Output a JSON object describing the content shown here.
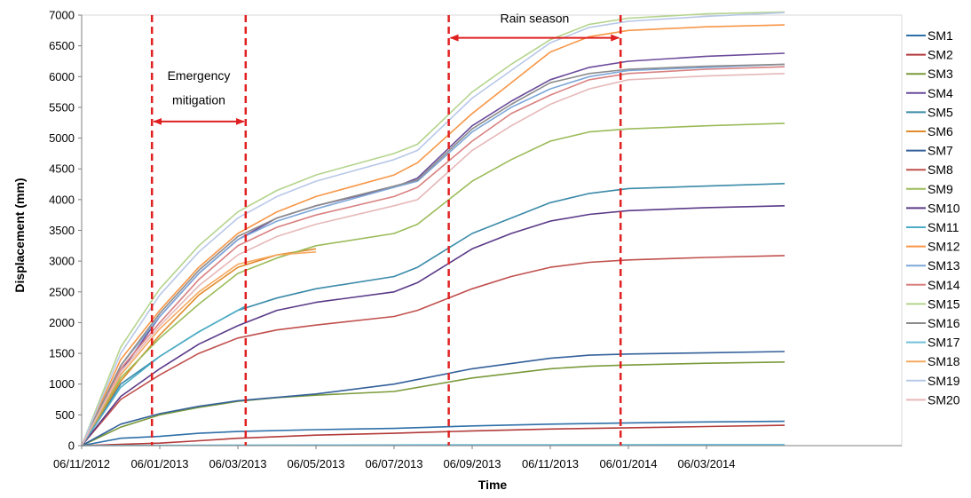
{
  "chart_data": {
    "type": "line",
    "title": "",
    "xlabel": "Time",
    "ylabel": "Displacement  (mm)",
    "x_ticks": [
      "06/11/2012",
      "06/01/2013",
      "06/03/2013",
      "06/05/2013",
      "06/07/2013",
      "06/09/2013",
      "06/11/2013",
      "06/01/2014",
      "06/03/2014"
    ],
    "ylim": [
      0,
      7000
    ],
    "y_ticks": [
      0,
      500,
      1000,
      1500,
      2000,
      2500,
      3000,
      3500,
      4000,
      4500,
      5000,
      5500,
      6000,
      6500,
      7000
    ],
    "grid": false,
    "legend_position": "right",
    "x_unit_note": "x values are in months counted from 06/11/2012 (tick index)",
    "series": [
      {
        "name": "SM1",
        "color": "#2e6fa8",
        "x": [
          0,
          0.5,
          1,
          1.5,
          2,
          3,
          4,
          5,
          6,
          7,
          8,
          9
        ],
        "y": [
          0,
          120,
          150,
          200,
          230,
          260,
          280,
          320,
          350,
          370,
          385,
          395
        ]
      },
      {
        "name": "SM2",
        "color": "#b33a3a",
        "x": [
          0,
          0.5,
          1,
          1.5,
          2,
          3,
          4,
          5,
          6,
          7,
          8,
          9
        ],
        "y": [
          0,
          20,
          40,
          80,
          120,
          170,
          200,
          240,
          270,
          290,
          310,
          330
        ]
      },
      {
        "name": "SM3",
        "color": "#7a9a3a",
        "x": [
          0,
          0.5,
          1,
          1.5,
          2,
          2.5,
          3,
          4,
          5,
          6,
          6.5,
          7,
          8,
          9
        ],
        "y": [
          0,
          300,
          500,
          620,
          720,
          780,
          820,
          880,
          1100,
          1250,
          1290,
          1310,
          1340,
          1360
        ]
      },
      {
        "name": "SM4",
        "color": "#6a4a9a",
        "x": [
          0,
          0.5,
          1,
          1.5,
          2,
          2.5,
          3,
          4,
          4.3,
          5,
          5.5,
          6,
          6.5,
          7,
          8,
          9
        ],
        "y": [
          0,
          1200,
          2100,
          2800,
          3350,
          3700,
          3900,
          4200,
          4350,
          5200,
          5600,
          5950,
          6150,
          6250,
          6330,
          6380
        ]
      },
      {
        "name": "SM5",
        "color": "#3a8aa8",
        "x": [
          0,
          0.5,
          1,
          1.5,
          2,
          2.5,
          3,
          4,
          4.3,
          5,
          5.5,
          6,
          6.5,
          7,
          8,
          9
        ],
        "y": [
          0,
          1000,
          1450,
          1850,
          2200,
          2400,
          2550,
          2750,
          2900,
          3450,
          3700,
          3950,
          4100,
          4180,
          4220,
          4260
        ]
      },
      {
        "name": "SM6",
        "color": "#e08a2a",
        "x": [
          0,
          0.5,
          1,
          1.5,
          2,
          2.5,
          3
        ],
        "y": [
          0,
          1050,
          1800,
          2450,
          2900,
          3100,
          3200
        ]
      },
      {
        "name": "SM7",
        "color": "#34609a",
        "x": [
          0,
          0.5,
          1,
          1.5,
          2,
          3,
          4,
          5,
          6,
          6.5,
          7,
          8,
          9
        ],
        "y": [
          0,
          350,
          520,
          640,
          730,
          840,
          1000,
          1250,
          1420,
          1470,
          1490,
          1510,
          1530
        ]
      },
      {
        "name": "SM8",
        "color": "#c0504d",
        "x": [
          0,
          0.5,
          1,
          1.5,
          2,
          2.5,
          3,
          4,
          4.3,
          5,
          5.5,
          6,
          6.5,
          7,
          8,
          9
        ],
        "y": [
          0,
          750,
          1150,
          1500,
          1750,
          1880,
          1960,
          2100,
          2200,
          2550,
          2750,
          2900,
          2980,
          3020,
          3060,
          3090
        ]
      },
      {
        "name": "SM9",
        "color": "#9bbb59",
        "x": [
          0,
          0.5,
          1,
          1.5,
          2,
          2.5,
          3,
          4,
          4.3,
          5,
          5.5,
          6,
          6.5,
          7,
          8,
          9
        ],
        "y": [
          0,
          1100,
          1750,
          2300,
          2800,
          3050,
          3250,
          3450,
          3600,
          4300,
          4650,
          4950,
          5100,
          5150,
          5200,
          5240
        ]
      },
      {
        "name": "SM10",
        "color": "#5a3a88",
        "x": [
          0,
          0.5,
          1,
          1.5,
          2,
          2.5,
          3,
          4,
          4.3,
          5,
          5.5,
          6,
          6.5,
          7,
          8,
          9
        ],
        "y": [
          0,
          800,
          1250,
          1650,
          1950,
          2200,
          2330,
          2500,
          2650,
          3200,
          3450,
          3650,
          3760,
          3820,
          3870,
          3900
        ]
      },
      {
        "name": "SM11",
        "color": "#4bacc6",
        "x": [
          0,
          0.5,
          1,
          1.5,
          2,
          2.1
        ],
        "y": [
          0,
          950,
          1450,
          1850,
          2200,
          2270
        ]
      },
      {
        "name": "SM12",
        "color": "#f79646",
        "x": [
          0,
          0.5,
          1,
          1.5,
          2,
          2.5,
          3,
          4,
          4.3,
          5,
          5.5,
          6,
          6.5,
          7,
          8,
          9
        ],
        "y": [
          0,
          1400,
          2200,
          2900,
          3450,
          3800,
          4050,
          4400,
          4600,
          5400,
          5900,
          6400,
          6650,
          6750,
          6810,
          6840
        ]
      },
      {
        "name": "SM13",
        "color": "#7da7d9",
        "x": [
          0,
          0.5,
          1,
          1.5,
          2,
          2.5,
          3,
          4,
          4.3,
          5,
          5.5,
          6,
          6.5,
          7,
          8,
          9
        ],
        "y": [
          0,
          1300,
          2100,
          2800,
          3350,
          3650,
          3850,
          4200,
          4300,
          5100,
          5500,
          5800,
          6000,
          6100,
          6150,
          6200
        ]
      },
      {
        "name": "SM14",
        "color": "#d98080",
        "x": [
          0,
          0.5,
          1,
          1.5,
          2,
          2.5,
          3,
          4,
          4.3,
          5,
          5.5,
          6,
          6.5,
          7,
          8,
          9
        ],
        "y": [
          0,
          1250,
          2000,
          2700,
          3250,
          3550,
          3750,
          4050,
          4200,
          4950,
          5400,
          5700,
          5950,
          6050,
          6120,
          6160
        ]
      },
      {
        "name": "SM15",
        "color": "#b4d48c",
        "x": [
          0,
          0.5,
          1,
          1.5,
          2,
          2.5,
          3,
          4,
          4.3,
          5,
          5.5,
          6,
          6.5,
          7,
          8,
          9
        ],
        "y": [
          0,
          1600,
          2550,
          3250,
          3800,
          4150,
          4400,
          4750,
          4900,
          5750,
          6200,
          6600,
          6850,
          6950,
          7020,
          7050
        ]
      },
      {
        "name": "SM16",
        "color": "#8c8c8c",
        "x": [
          0,
          0.5,
          1,
          1.5,
          2,
          2.5,
          3,
          4,
          4.3,
          5,
          5.5,
          6,
          6.5,
          7,
          8,
          9
        ],
        "y": [
          0,
          1300,
          2150,
          2850,
          3400,
          3700,
          3900,
          4220,
          4320,
          5150,
          5550,
          5900,
          6050,
          6120,
          6170,
          6200
        ]
      },
      {
        "name": "SM17",
        "color": "#6fbfd8",
        "x": [
          0,
          1,
          2,
          3,
          4,
          5,
          6,
          7,
          8,
          9
        ],
        "y": [
          0,
          5,
          8,
          10,
          12,
          14,
          15,
          16,
          17,
          18
        ]
      },
      {
        "name": "SM18",
        "color": "#f5a860",
        "x": [
          0,
          0.5,
          1,
          1.5,
          2,
          2.5,
          3
        ],
        "y": [
          0,
          1150,
          1900,
          2500,
          2950,
          3100,
          3150
        ]
      },
      {
        "name": "SM19",
        "color": "#b8c8e8",
        "x": [
          0,
          0.5,
          1,
          1.5,
          2,
          2.5,
          3,
          4,
          4.3,
          5,
          5.5,
          6,
          6.5,
          7,
          8,
          9
        ],
        "y": [
          0,
          1500,
          2450,
          3150,
          3700,
          4050,
          4300,
          4650,
          4800,
          5650,
          6100,
          6550,
          6800,
          6900,
          6980,
          7040
        ]
      },
      {
        "name": "SM20",
        "color": "#e6b8b8",
        "x": [
          0,
          0.5,
          1,
          1.5,
          2,
          2.5,
          3,
          4,
          4.3,
          5,
          5.5,
          6,
          6.5,
          7,
          8,
          9
        ],
        "y": [
          0,
          1200,
          1950,
          2600,
          3100,
          3400,
          3600,
          3900,
          4000,
          4800,
          5200,
          5550,
          5800,
          5950,
          6010,
          6050
        ]
      }
    ],
    "vertical_lines": [
      {
        "x": 0.9,
        "color": "#e02020"
      },
      {
        "x": 2.1,
        "color": "#e02020"
      },
      {
        "x": 4.7,
        "color": "#e02020"
      },
      {
        "x": 6.9,
        "color": "#e02020"
      }
    ],
    "annotations": [
      {
        "text_lines": [
          "Emergency",
          "mitigation"
        ],
        "x_from": 0.9,
        "x_to": 2.1,
        "arrow_y": 5270,
        "text_y": [
          5950,
          5550
        ]
      },
      {
        "text_lines": [
          "Rain season"
        ],
        "x_from": 4.7,
        "x_to": 6.9,
        "arrow_y": 6630,
        "text_y": [
          6880
        ]
      }
    ]
  }
}
